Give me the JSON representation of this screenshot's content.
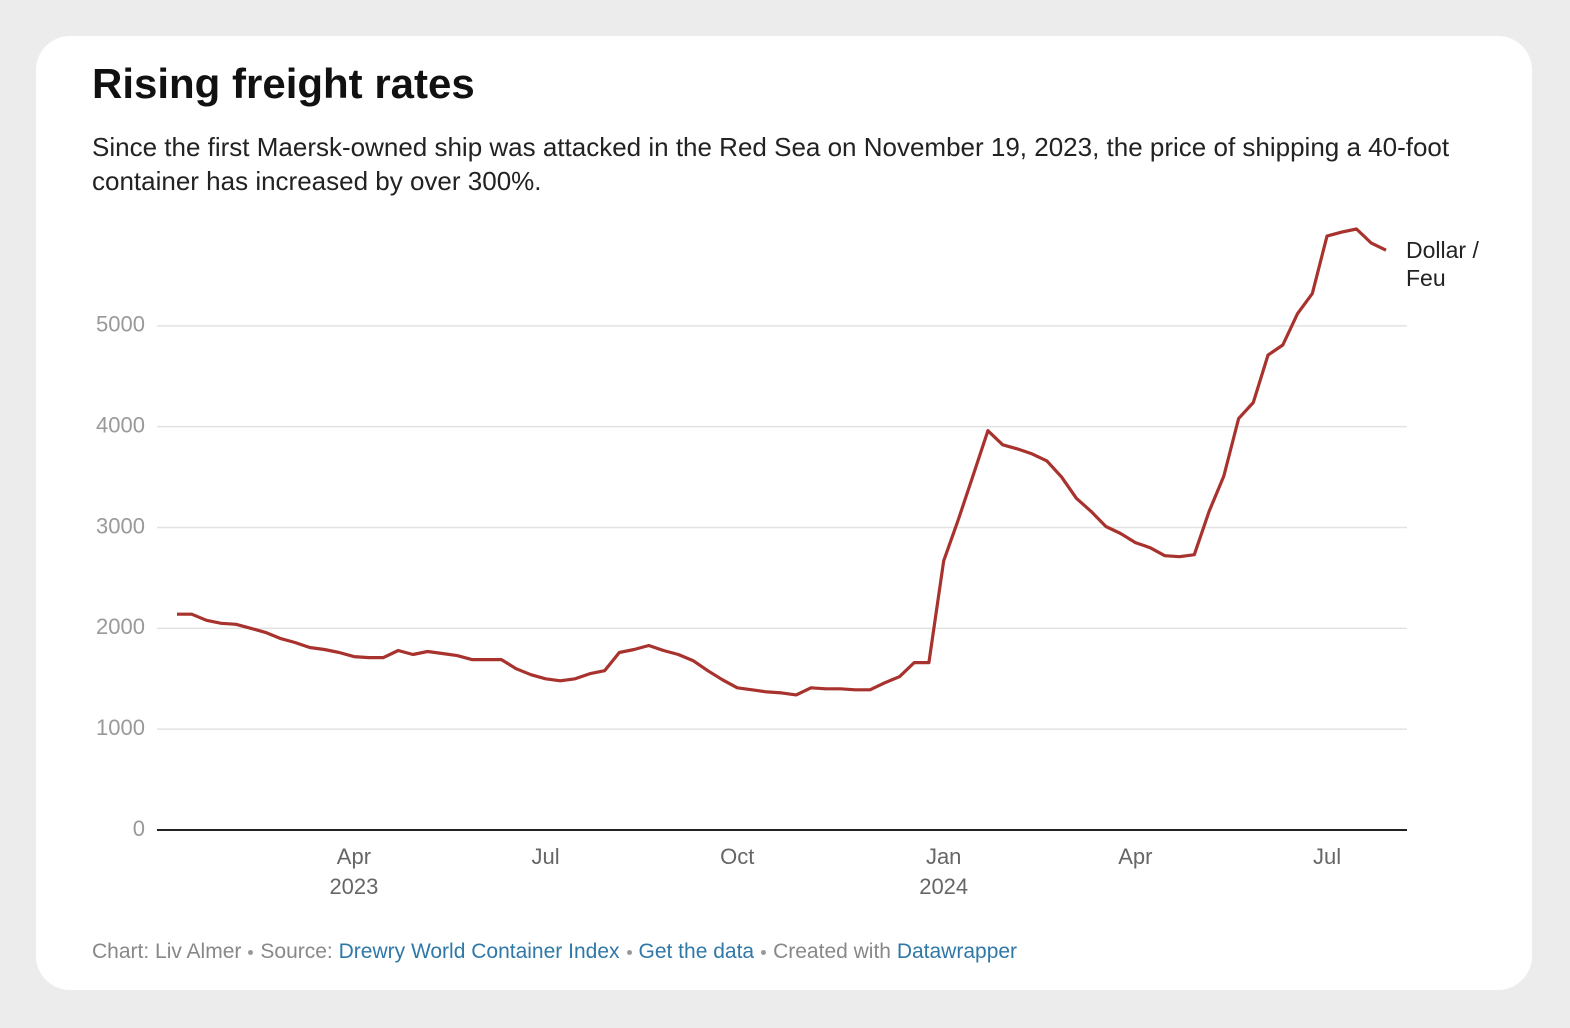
{
  "chart_data": {
    "type": "line",
    "title": "Rising freight rates",
    "subtitle": "Since the first Maersk-owned ship was attacked in the Red Sea on November 19, 2023, the price of shipping a 40-foot container has increased by over 300%.",
    "categories": [
      null,
      null,
      null,
      null,
      null,
      null,
      null,
      null,
      null,
      null,
      null,
      null,
      "Apr",
      null,
      null,
      null,
      null,
      null,
      null,
      null,
      null,
      null,
      null,
      null,
      null,
      "Jul",
      null,
      null,
      null,
      null,
      null,
      null,
      null,
      null,
      null,
      null,
      null,
      null,
      "Oct",
      null,
      null,
      null,
      null,
      null,
      null,
      null,
      null,
      null,
      null,
      null,
      null,
      null,
      "Jan",
      null,
      null,
      null,
      null,
      null,
      null,
      null,
      null,
      null,
      null,
      null,
      null,
      "Apr",
      null,
      null,
      null,
      null,
      null,
      null,
      null,
      null,
      null,
      null,
      null,
      null,
      "Jul",
      null,
      null,
      null,
      null
    ],
    "category_years": [
      null,
      null,
      null,
      null,
      null,
      null,
      null,
      null,
      null,
      null,
      null,
      null,
      "2023",
      null,
      null,
      null,
      null,
      null,
      null,
      null,
      null,
      null,
      null,
      null,
      null,
      null,
      null,
      null,
      null,
      null,
      null,
      null,
      null,
      null,
      null,
      null,
      null,
      null,
      null,
      null,
      null,
      null,
      null,
      null,
      null,
      null,
      null,
      null,
      null,
      null,
      null,
      null,
      "2024",
      null,
      null,
      null,
      null,
      null,
      null,
      null,
      null,
      null,
      null,
      null,
      null,
      null,
      null,
      null,
      null,
      null,
      null,
      null,
      null,
      null,
      null,
      null,
      null,
      null,
      null,
      null,
      null,
      null,
      null
    ],
    "series": [
      {
        "name": "Dollar / Feu",
        "color": "#a8322d",
        "values": [
          2140,
          2140,
          2080,
          2050,
          2040,
          2000,
          1960,
          1900,
          1860,
          1810,
          1790,
          1760,
          1720,
          1710,
          1710,
          1780,
          1740,
          1770,
          1750,
          1730,
          1690,
          1690,
          1690,
          1600,
          1540,
          1500,
          1480,
          1500,
          1550,
          1580,
          1760,
          1790,
          1830,
          1780,
          1740,
          1680,
          1580,
          1490,
          1410,
          1390,
          1370,
          1360,
          1340,
          1410,
          1400,
          1400,
          1390,
          1390,
          1460,
          1520,
          1660,
          1660,
          2670,
          3080,
          3520,
          3960,
          3820,
          3780,
          3730,
          3660,
          3500,
          3290,
          3160,
          3010,
          2940,
          2850,
          2800,
          2720,
          2710,
          2730,
          3160,
          3510,
          4080,
          4240,
          4710,
          4810,
          5120,
          5320,
          5890,
          5930,
          5960,
          5820,
          5750
        ]
      }
    ],
    "ylim": [
      0,
      6000
    ],
    "yticks": [
      0,
      1000,
      2000,
      3000,
      4000,
      5000
    ],
    "grid": true,
    "footer": {
      "chart_credit": "Chart: Liv Almer",
      "source_label": "Source:",
      "source": "Drewry World Container Index",
      "get_data": "Get the data",
      "created_label": "Created with",
      "tool": "Datawrapper"
    }
  }
}
